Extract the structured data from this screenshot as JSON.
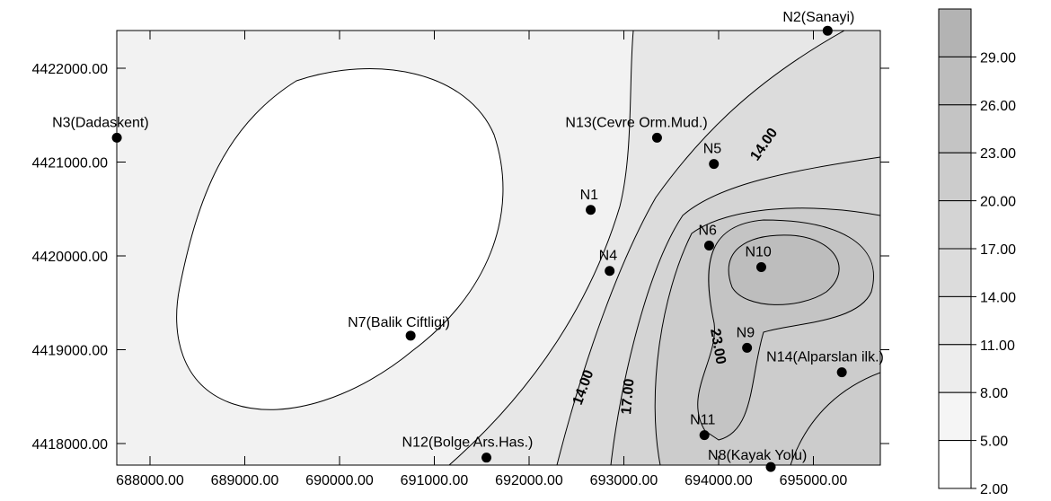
{
  "map": {
    "x_ticks": [
      "688000.00",
      "689000.00",
      "690000.00",
      "691000.00",
      "692000.00",
      "693000.00",
      "694000.00",
      "695000.00"
    ],
    "y_ticks": [
      "4422000.00",
      "4421000.00",
      "4420000.00",
      "4419000.00",
      "4418000.00"
    ],
    "stations": [
      {
        "label": "N2(Sanayi)",
        "x": 695150,
        "y": 4422400
      },
      {
        "label": "N3(Dadaskent)",
        "x": 687650,
        "y": 4421260
      },
      {
        "label": "N13(Cevre Orm.Mud.)",
        "x": 693350,
        "y": 4421260
      },
      {
        "label": "N5",
        "x": 693950,
        "y": 4420980
      },
      {
        "label": "N1",
        "x": 692650,
        "y": 4420490
      },
      {
        "label": "N6",
        "x": 693900,
        "y": 4420110
      },
      {
        "label": "N10",
        "x": 694450,
        "y": 4419880
      },
      {
        "label": "N4",
        "x": 692850,
        "y": 4419840
      },
      {
        "label": "N7(Balik Ciftligi)",
        "x": 690750,
        "y": 4419150
      },
      {
        "label": "N9",
        "x": 694300,
        "y": 4419020
      },
      {
        "label": "N14(Alparslan ilk.)",
        "x": 695300,
        "y": 4418760
      },
      {
        "label": "N11",
        "x": 693850,
        "y": 4418090
      },
      {
        "label": "N12(Bolge Ars.Has.)",
        "x": 691550,
        "y": 4417850
      },
      {
        "label": "N8(Kayak Yolu)",
        "x": 694550,
        "y": 4417750
      }
    ],
    "contour_labels": [
      "14.00",
      "14.00",
      "17.00",
      "23.00"
    ]
  },
  "legend": {
    "levels": [
      "29.00",
      "26.00",
      "23.00",
      "20.00",
      "17.00",
      "14.00",
      "11.00",
      "8.00",
      "5.00",
      "2.00"
    ],
    "colors": [
      "#b3b3b3",
      "#bdbdbd",
      "#c4c4c4",
      "#cccccc",
      "#d4d4d4",
      "#dcdcdc",
      "#e5e5e5",
      "#ededed",
      "#f5f5f5",
      "#ffffff"
    ]
  }
}
